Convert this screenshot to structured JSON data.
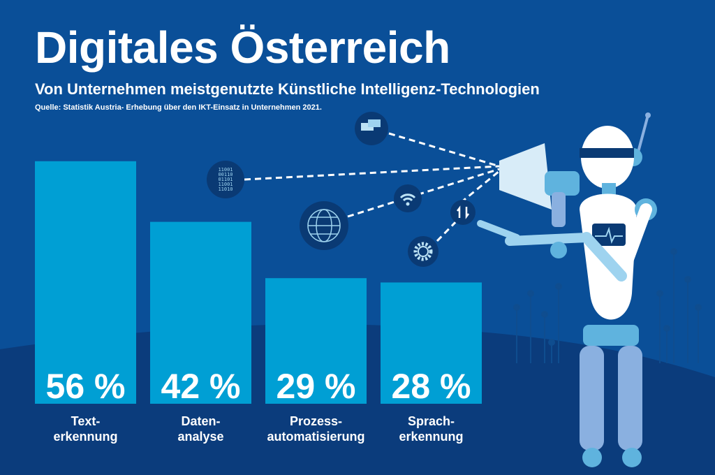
{
  "header": {
    "title": "Digitales Österreich",
    "subtitle": "Von Unternehmen meistgenutzte Künstliche Intelligenz-Technologien",
    "source": "Quelle: Statistik Austria- Erhebung über den IKT-Einsatz in Unternehmen 2021."
  },
  "colors": {
    "background": "#0a4f98",
    "hill": "#0b3c7c",
    "bar": "#009fd4",
    "icon_circle": "#0a3a74"
  },
  "binary_icon": [
    "11001",
    "00110",
    "01101",
    "11001",
    "11010"
  ],
  "chart_data": {
    "type": "bar",
    "title": "Von Unternehmen meistgenutzte Künstliche Intelligenz-Technologien",
    "categories": [
      [
        "Text-",
        "erkennung"
      ],
      [
        "Daten-",
        "analyse"
      ],
      [
        "Prozess-",
        "automatisierung"
      ],
      [
        "Sprach-",
        "erkennung"
      ]
    ],
    "values": [
      56,
      42,
      29,
      28
    ],
    "value_labels": [
      "56 %",
      "42 %",
      "29 %",
      "28 %"
    ],
    "unit": "%",
    "ylim": [
      0,
      60
    ],
    "grid": false,
    "xlabel": "",
    "ylabel": ""
  }
}
